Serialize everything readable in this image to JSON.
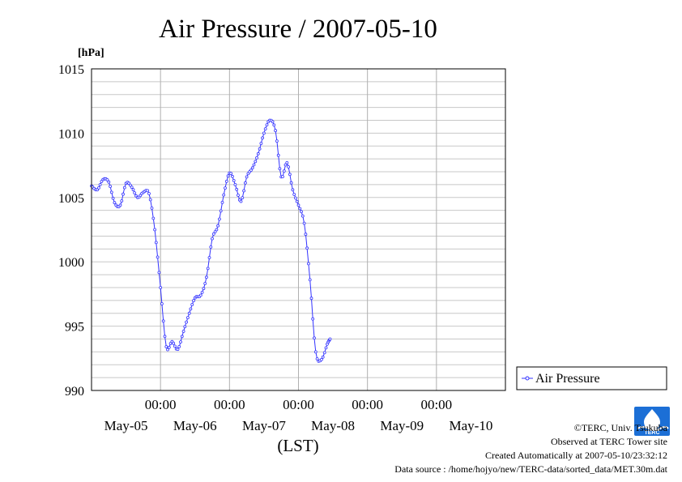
{
  "chart_data": {
    "type": "line",
    "title": "Air Pressure / 2007-05-10",
    "ylabel": "[hPa]",
    "xlabel": "(LST)",
    "ylim": [
      990,
      1015
    ],
    "yticks": [
      "990",
      "995",
      "1000",
      "1005",
      "1010",
      "1015"
    ],
    "x_time_labels": [
      "00:00",
      "00:00",
      "00:00",
      "00:00",
      "00:00"
    ],
    "x_date_labels": [
      "May-05",
      "May-06",
      "May-07",
      "May-08",
      "May-09",
      "May-10"
    ],
    "x_start": "2007-05-05 00:00",
    "x_end": "2007-05-11 00:00",
    "grid": true,
    "legend_position": "right",
    "series": [
      {
        "name": "Air Pressure",
        "color": "#3333ff",
        "points": [
          [
            "2007-05-05 00:00",
            1005.9
          ],
          [
            "2007-05-05 02:00",
            1005.6
          ],
          [
            "2007-05-05 04:00",
            1006.4
          ],
          [
            "2007-05-05 06:00",
            1006.2
          ],
          [
            "2007-05-05 08:00",
            1004.6
          ],
          [
            "2007-05-05 10:00",
            1004.4
          ],
          [
            "2007-05-05 12:00",
            1006.1
          ],
          [
            "2007-05-05 14:00",
            1005.8
          ],
          [
            "2007-05-05 16:00",
            1005.0
          ],
          [
            "2007-05-05 18:00",
            1005.4
          ],
          [
            "2007-05-05 20:00",
            1005.3
          ],
          [
            "2007-05-05 22:00",
            1002.5
          ],
          [
            "2007-05-06 00:00",
            998.0
          ],
          [
            "2007-05-06 02:00",
            993.4
          ],
          [
            "2007-05-06 04:00",
            993.8
          ],
          [
            "2007-05-06 06:00",
            993.2
          ],
          [
            "2007-05-06 08:00",
            994.6
          ],
          [
            "2007-05-06 10:00",
            996.0
          ],
          [
            "2007-05-06 12:00",
            997.2
          ],
          [
            "2007-05-06 14:00",
            997.4
          ],
          [
            "2007-05-06 16:00",
            998.8
          ],
          [
            "2007-05-06 18:00",
            1001.8
          ],
          [
            "2007-05-06 20:00",
            1002.8
          ],
          [
            "2007-05-06 22:00",
            1005.2
          ],
          [
            "2007-05-07 00:00",
            1006.9
          ],
          [
            "2007-05-07 02:00",
            1006.0
          ],
          [
            "2007-05-07 04:00",
            1004.7
          ],
          [
            "2007-05-07 06:00",
            1006.6
          ],
          [
            "2007-05-07 08:00",
            1007.3
          ],
          [
            "2007-05-07 10:00",
            1008.4
          ],
          [
            "2007-05-07 12:00",
            1010.0
          ],
          [
            "2007-05-07 14:00",
            1011.0
          ],
          [
            "2007-05-07 16:00",
            1010.2
          ],
          [
            "2007-05-07 18:00",
            1006.6
          ],
          [
            "2007-05-07 20:00",
            1007.7
          ],
          [
            "2007-05-07 22:00",
            1005.6
          ],
          [
            "2007-05-08 00:00",
            1004.4
          ],
          [
            "2007-05-08 02:00",
            1003.0
          ],
          [
            "2007-05-08 04:00",
            998.6
          ],
          [
            "2007-05-08 06:00",
            993.0
          ],
          [
            "2007-05-08 08:00",
            992.4
          ],
          [
            "2007-05-08 10:00",
            993.6
          ],
          [
            "2007-05-08 11:00",
            994.0
          ]
        ]
      }
    ]
  },
  "footer": {
    "credit": "©TERC, Univ. Tsukuba",
    "observed": "Observed at TERC Tower site",
    "created": "Created Automatically at 2007-05-10/23:32:12",
    "source": "Data source : /home/hojyo/new/TERC-data/sorted_data/MET.30m.dat"
  },
  "logo": {
    "text": "TERC",
    "color": "#1c6fd6"
  }
}
